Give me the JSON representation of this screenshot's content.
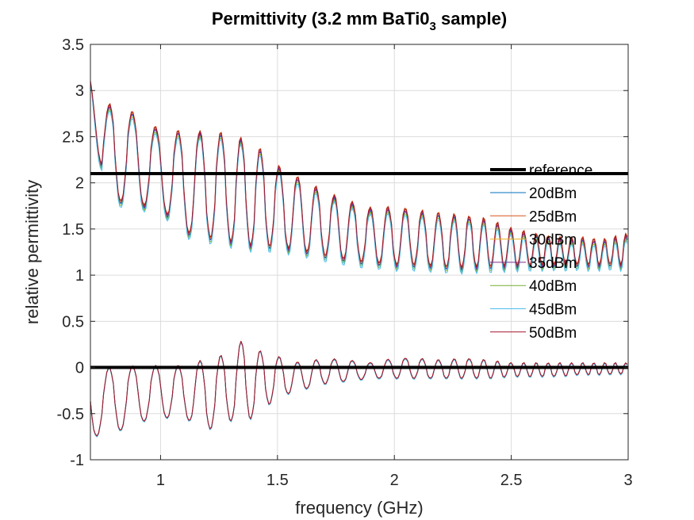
{
  "chart_data": {
    "type": "line",
    "title": "Permittivity (3.2 mm BaTi0",
    "title_subscript": "3",
    "title_suffix": " sample)",
    "xlabel": "frequency (GHz)",
    "ylabel": "relative permittivity",
    "xlim": [
      0.7,
      3.0
    ],
    "ylim": [
      -1.0,
      3.5
    ],
    "xticks": [
      1,
      1.5,
      2,
      2.5,
      3
    ],
    "yticks": [
      -1,
      -0.5,
      0,
      0.5,
      1,
      1.5,
      2,
      2.5,
      3,
      3.5
    ],
    "xtick_labels": [
      "1",
      "1.5",
      "2",
      "2.5",
      "3"
    ],
    "ytick_labels": [
      "-1",
      "-0.5",
      "0",
      "0.5",
      "1",
      "1.5",
      "2",
      "2.5",
      "3",
      "3.5"
    ],
    "grid": true,
    "legend_position": "right",
    "reference": {
      "name": "reference",
      "color": "#000000",
      "levels": [
        2.1,
        0.0
      ]
    },
    "series": [
      {
        "name": "20dBm",
        "color": "#0072BD",
        "offset": -0.02
      },
      {
        "name": "25dBm",
        "color": "#D95319",
        "offset": 0.02
      },
      {
        "name": "30dBm",
        "color": "#EDB120",
        "offset": 0.0
      },
      {
        "name": "35dBm",
        "color": "#7E2F8E",
        "offset": -0.01
      },
      {
        "name": "40dBm",
        "color": "#77AC30",
        "offset": -0.04
      },
      {
        "name": "45dBm",
        "color": "#4DBEEE",
        "offset": -0.06
      },
      {
        "name": "50dBm",
        "color": "#A2142F",
        "offset": 0.01
      }
    ],
    "real_part": {
      "x": [
        0.7,
        0.75,
        0.8,
        0.9,
        1.0,
        1.1,
        1.2,
        1.3,
        1.4,
        1.5,
        1.6,
        1.7,
        1.8,
        1.9,
        2.0,
        2.1,
        2.2,
        2.3,
        2.4,
        2.5,
        2.6,
        2.7,
        2.8,
        2.9,
        3.0
      ],
      "max": [
        3.1,
        2.75,
        2.9,
        2.72,
        2.56,
        2.55,
        2.55,
        2.52,
        2.42,
        2.18,
        2.04,
        1.9,
        1.8,
        1.72,
        1.73,
        1.7,
        1.66,
        1.64,
        1.6,
        1.5,
        1.44,
        1.4,
        1.4,
        1.38,
        1.45
      ],
      "min": [
        3.1,
        1.95,
        1.8,
        1.75,
        1.72,
        1.45,
        1.4,
        1.35,
        1.3,
        1.3,
        1.25,
        1.2,
        1.15,
        1.12,
        1.1,
        1.1,
        1.07,
        1.07,
        1.08,
        1.09,
        1.1,
        1.1,
        1.1,
        1.1,
        1.1
      ],
      "period": [
        0.105,
        0.105,
        0.1,
        0.1,
        0.097,
        0.094,
        0.09,
        0.086,
        0.082,
        0.08,
        0.079,
        0.078,
        0.077,
        0.076,
        0.075,
        0.072,
        0.068,
        0.064,
        0.06,
        0.056,
        0.052,
        0.05,
        0.048,
        0.046,
        0.045
      ],
      "first_peak": 0.78
    },
    "imag_part": {
      "x": [
        0.7,
        0.75,
        0.8,
        0.9,
        1.0,
        1.1,
        1.2,
        1.3,
        1.35,
        1.4,
        1.5,
        1.6,
        1.7,
        1.8,
        1.9,
        2.0,
        2.1,
        2.2,
        2.3,
        2.4,
        2.5,
        2.6,
        2.7,
        2.8,
        2.9,
        3.0
      ],
      "max": [
        -0.05,
        0.0,
        0.0,
        0.02,
        0.02,
        0.02,
        0.1,
        0.15,
        0.3,
        0.2,
        0.12,
        0.05,
        0.1,
        0.08,
        0.05,
        0.1,
        0.1,
        0.08,
        0.1,
        0.08,
        0.05,
        0.05,
        0.05,
        0.05,
        0.05,
        0.05
      ],
      "min": [
        -0.8,
        -0.7,
        -0.72,
        -0.6,
        -0.55,
        -0.55,
        -0.68,
        -0.58,
        -0.58,
        -0.55,
        -0.32,
        -0.25,
        -0.18,
        -0.15,
        -0.12,
        -0.12,
        -0.12,
        -0.12,
        -0.12,
        -0.12,
        -0.1,
        -0.1,
        -0.1,
        -0.08,
        -0.08,
        -0.07
      ],
      "period": [
        0.105,
        0.105,
        0.1,
        0.1,
        0.097,
        0.094,
        0.09,
        0.086,
        0.084,
        0.082,
        0.08,
        0.079,
        0.078,
        0.077,
        0.076,
        0.075,
        0.072,
        0.068,
        0.064,
        0.06,
        0.056,
        0.052,
        0.05,
        0.048,
        0.046,
        0.045
      ],
      "first_peak": 0.78
    }
  }
}
